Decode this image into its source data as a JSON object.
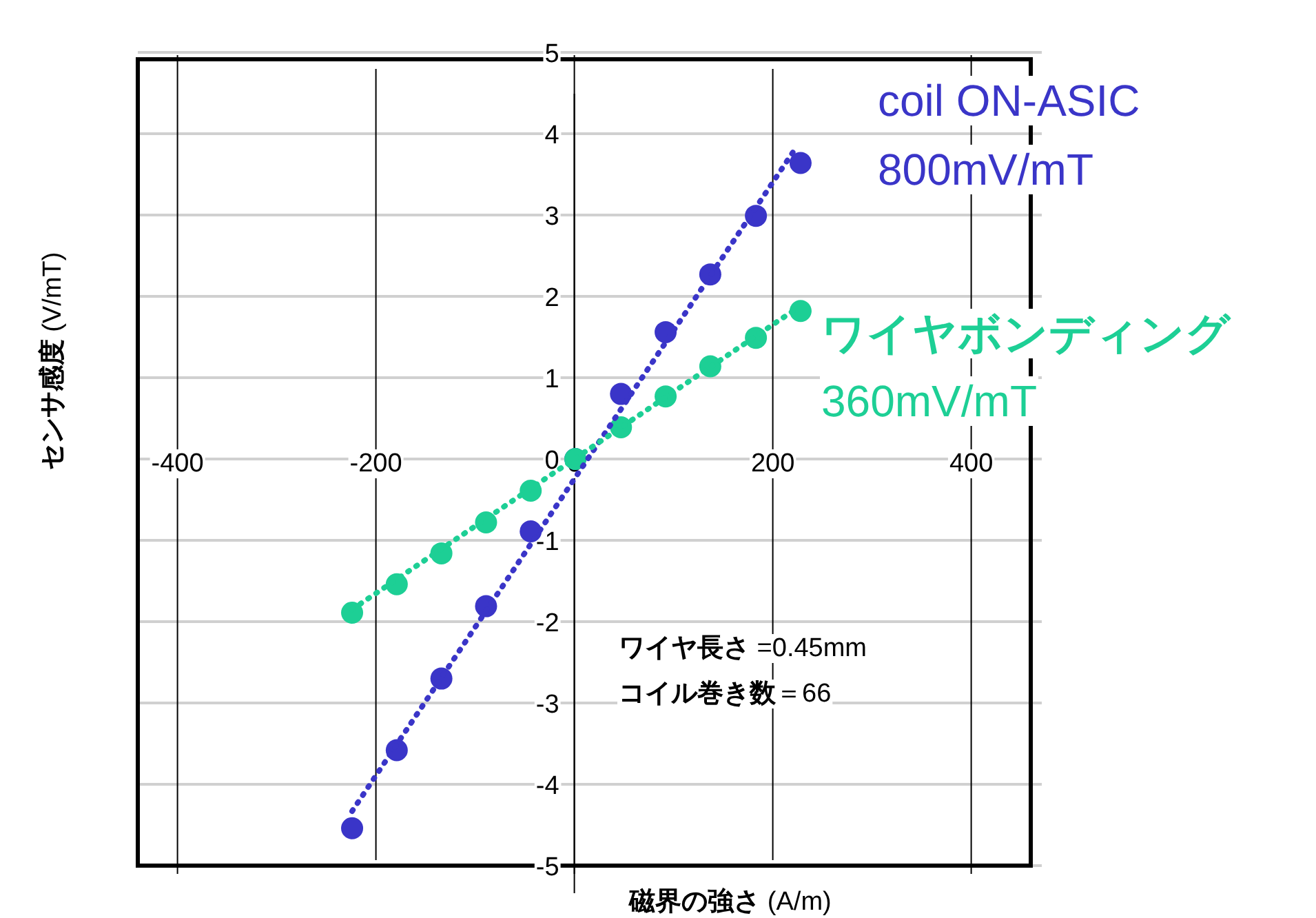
{
  "chart_data": {
    "type": "scatter",
    "xlabel": "**磁界の強さ** (A/m)",
    "ylabel": "**センサ感度** (V/mT)",
    "xlim": [
      -440,
      460
    ],
    "ylim": [
      -5,
      5
    ],
    "xticks": [
      -400,
      -200,
      0,
      200,
      400
    ],
    "yticks": [
      -5,
      -4,
      -3,
      -2,
      -1,
      0,
      1,
      2,
      3,
      4,
      5
    ],
    "grid": true,
    "legend": false,
    "marker": "circle",
    "series": [
      {
        "name": "coil ON-ASIC",
        "color": "#3a35c8",
        "x": [
          -224,
          -179,
          -134,
          -89,
          -44,
          1,
          47,
          92,
          137,
          183,
          228
        ],
        "values": [
          -4.54,
          -3.58,
          -2.7,
          -1.81,
          -0.89,
          0,
          0.8,
          1.56,
          2.27,
          2.99,
          3.64
        ]
      },
      {
        "name": "ワイヤボンディング",
        "color": "#1dcf95",
        "x": [
          -224,
          -179,
          -134,
          -89,
          -44,
          1,
          47,
          92,
          137,
          183,
          228
        ],
        "values": [
          -1.89,
          -1.54,
          -1.16,
          -0.78,
          -0.39,
          0,
          0.39,
          0.77,
          1.14,
          1.49,
          1.82
        ]
      },
      {
        "color": "#3a35c8",
        "type": "line",
        "line_style": "dotted",
        "marker": "none",
        "x": [
          -224,
          224
        ],
        "values": [
          -4.33,
          3.84
        ]
      },
      {
        "color": "#1dcf95",
        "type": "line",
        "line_style": "dotted",
        "marker": "none",
        "x": [
          -224,
          224
        ],
        "values": [
          -1.85,
          1.85
        ]
      }
    ],
    "annotations": [
      "800mV/mT",
      "360mV/mT",
      "**ワイヤ長さ** =0.45mm",
      "**コイル巻き数**＝66"
    ]
  }
}
